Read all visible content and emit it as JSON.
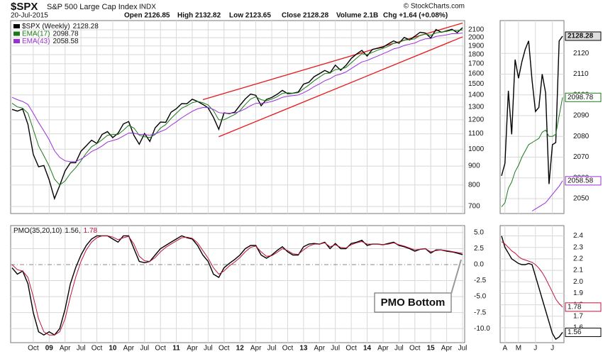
{
  "header": {
    "symbol": "$SPX",
    "name": "S&P 500 Large Cap Index",
    "exchange": "INDX",
    "copyright": "© StockCharts.com",
    "date": "20-Jul-2015",
    "quote": [
      "Open 2126.85",
      "High 2132.82",
      "Low 2123.65",
      "Close 2128.28",
      "Volume 2.1B",
      "Chg +1.64 (+0.08%)"
    ]
  },
  "chart_data": [
    {
      "type": "line",
      "x": [
        "2008-06",
        "2008-07",
        "2008-08",
        "2008-09",
        "2008-10",
        "2008-11",
        "2008-12",
        "2009-01",
        "2009-02",
        "2009-03",
        "2009-04",
        "2009-05",
        "2009-06",
        "2009-07",
        "2009-08",
        "2009-09",
        "2009-10",
        "2009-11",
        "2009-12",
        "2010-01",
        "2010-02",
        "2010-03",
        "2010-04",
        "2010-05",
        "2010-06",
        "2010-07",
        "2010-08",
        "2010-09",
        "2010-10",
        "2010-11",
        "2010-12",
        "2011-01",
        "2011-02",
        "2011-03",
        "2011-04",
        "2011-05",
        "2011-06",
        "2011-07",
        "2011-08",
        "2011-09",
        "2011-10",
        "2011-11",
        "2011-12",
        "2012-01",
        "2012-02",
        "2012-03",
        "2012-04",
        "2012-05",
        "2012-06",
        "2012-07",
        "2012-08",
        "2012-09",
        "2012-10",
        "2012-11",
        "2012-12",
        "2013-01",
        "2013-02",
        "2013-03",
        "2013-04",
        "2013-05",
        "2013-06",
        "2013-07",
        "2013-08",
        "2013-09",
        "2013-10",
        "2013-11",
        "2013-12",
        "2014-01",
        "2014-02",
        "2014-03",
        "2014-04",
        "2014-05",
        "2014-06",
        "2014-07",
        "2014-08",
        "2014-09",
        "2014-10",
        "2014-11",
        "2014-12",
        "2015-01",
        "2015-02",
        "2015-03",
        "2015-04",
        "2015-05",
        "2015-06",
        "2015-07"
      ],
      "xlim": [
        "2008-06",
        "2015-07"
      ],
      "xticks": [
        {
          "value": "2008-10",
          "label": "Oct"
        },
        {
          "value": "2009-01",
          "label": "09"
        },
        {
          "value": "2009-04",
          "label": "Apr"
        },
        {
          "value": "2009-07",
          "label": "Jul"
        },
        {
          "value": "2009-10",
          "label": "Oct"
        },
        {
          "value": "2010-01",
          "label": "10"
        },
        {
          "value": "2010-04",
          "label": "Apr"
        },
        {
          "value": "2010-07",
          "label": "Jul"
        },
        {
          "value": "2010-10",
          "label": "Oct"
        },
        {
          "value": "2011-01",
          "label": "11"
        },
        {
          "value": "2011-04",
          "label": "Apr"
        },
        {
          "value": "2011-07",
          "label": "Jul"
        },
        {
          "value": "2011-10",
          "label": "Oct"
        },
        {
          "value": "2012-01",
          "label": "12"
        },
        {
          "value": "2012-04",
          "label": "Apr"
        },
        {
          "value": "2012-07",
          "label": "Jul"
        },
        {
          "value": "2012-10",
          "label": "Oct"
        },
        {
          "value": "2013-01",
          "label": "13"
        },
        {
          "value": "2013-04",
          "label": "Apr"
        },
        {
          "value": "2013-07",
          "label": "Jul"
        },
        {
          "value": "2013-10",
          "label": "Oct"
        },
        {
          "value": "2014-01",
          "label": "14"
        },
        {
          "value": "2014-04",
          "label": "Apr"
        },
        {
          "value": "2014-07",
          "label": "Jul"
        },
        {
          "value": "2014-10",
          "label": "Oct"
        },
        {
          "value": "2015-01",
          "label": "15"
        },
        {
          "value": "2015-04",
          "label": "Apr"
        },
        {
          "value": "2015-07",
          "label": "Jul"
        }
      ],
      "ylim": [
        670,
        2224
      ],
      "log_y": true,
      "grid": true,
      "yticks": [
        700,
        800,
        900,
        1000,
        1100,
        1200,
        1300,
        1400,
        1500,
        1600,
        1700,
        1800,
        1900,
        2000,
        2100
      ],
      "pmo_ylim": [
        -12.2,
        6.1
      ],
      "pmo_yticks": [
        {
          "value": 5,
          "label": "5.0"
        },
        {
          "value": 2.5,
          "label": "2.5"
        },
        {
          "value": 0,
          "label": "0.0"
        },
        {
          "value": -2.5,
          "label": "-2.5"
        },
        {
          "value": -5,
          "label": "-5.0"
        },
        {
          "value": -7.5,
          "label": "-7.5"
        },
        {
          "value": -10,
          "label": "-10.0"
        }
      ],
      "legend_separator": ",",
      "annotation": "PMO Bottom",
      "trendlines": [
        {
          "color": "#e8191a",
          "x": [
            "2011-06",
            "2015-07"
          ],
          "y": [
            1360,
            2190
          ]
        },
        {
          "color": "#e8191a",
          "x": [
            "2011-09",
            "2015-07"
          ],
          "y": [
            1080,
            2010
          ]
        }
      ],
      "series": [
        {
          "name": "$SPX (Weekly)",
          "color": "#000000",
          "panel": "price",
          "values": [
            1280,
            1267,
            1283,
            1166,
            968,
            896,
            903,
            826,
            735,
            798,
            873,
            919,
            919,
            987,
            1021,
            1057,
            1036,
            1096,
            1115,
            1074,
            1104,
            1169,
            1187,
            1089,
            1031,
            1102,
            1049,
            1141,
            1183,
            1181,
            1258,
            1286,
            1327,
            1326,
            1364,
            1345,
            1321,
            1292,
            1219,
            1131,
            1253,
            1247,
            1258,
            1312,
            1366,
            1408,
            1398,
            1310,
            1362,
            1379,
            1406,
            1441,
            1412,
            1416,
            1426,
            1498,
            1515,
            1569,
            1598,
            1631,
            1606,
            1686,
            1633,
            1682,
            1757,
            1806,
            1848,
            1783,
            1859,
            1872,
            1884,
            1924,
            1960,
            1931,
            2003,
            1972,
            2018,
            2068,
            2059,
            1995,
            2105,
            2068,
            2086,
            2107,
            2063,
            2128.28
          ]
        },
        {
          "name": "EMA(17)",
          "color": "#1a7a1a",
          "panel": "price",
          "values": [
            1330,
            1300,
            1290,
            1250,
            1130,
            1020,
            960,
            900,
            830,
            800,
            820,
            860,
            890,
            930,
            975,
            1015,
            1035,
            1060,
            1090,
            1095,
            1095,
            1125,
            1160,
            1140,
            1090,
            1080,
            1075,
            1095,
            1140,
            1165,
            1210,
            1250,
            1290,
            1310,
            1335,
            1345,
            1335,
            1315,
            1270,
            1200,
            1200,
            1220,
            1240,
            1270,
            1320,
            1365,
            1385,
            1360,
            1350,
            1365,
            1385,
            1415,
            1420,
            1415,
            1420,
            1455,
            1490,
            1530,
            1565,
            1600,
            1605,
            1640,
            1645,
            1660,
            1710,
            1760,
            1810,
            1800,
            1825,
            1850,
            1870,
            1895,
            1930,
            1940,
            1970,
            1975,
            1985,
            2030,
            2045,
            2030,
            2060,
            2070,
            2080,
            2095,
            2090,
            2098.78
          ]
        },
        {
          "name": "EMA(43)",
          "color": "#9b30d9",
          "panel": "price",
          "values": [
            1380,
            1360,
            1345,
            1320,
            1250,
            1180,
            1120,
            1060,
            990,
            950,
            930,
            925,
            925,
            940,
            960,
            985,
            1000,
            1020,
            1045,
            1055,
            1065,
            1085,
            1105,
            1105,
            1095,
            1095,
            1090,
            1100,
            1115,
            1130,
            1160,
            1185,
            1215,
            1240,
            1265,
            1285,
            1295,
            1295,
            1280,
            1255,
            1250,
            1250,
            1252,
            1265,
            1285,
            1310,
            1330,
            1330,
            1335,
            1345,
            1360,
            1380,
            1390,
            1395,
            1400,
            1420,
            1445,
            1475,
            1500,
            1530,
            1550,
            1580,
            1595,
            1615,
            1650,
            1685,
            1720,
            1735,
            1760,
            1785,
            1810,
            1835,
            1865,
            1880,
            1905,
            1920,
            1935,
            1965,
            1985,
            1990,
            2015,
            2025,
            2035,
            2050,
            2050,
            2058.58
          ]
        },
        {
          "name": "PMO(35,20,10)",
          "color": "#000000",
          "panel": "pmo",
          "values": [
            -0.5,
            -1.5,
            -1,
            -3,
            -7.5,
            -10.5,
            -11,
            -10.5,
            -11,
            -10,
            -7,
            -3,
            -0.5,
            1.5,
            3,
            4,
            4.5,
            4.5,
            4.5,
            4,
            3.5,
            4.5,
            4.5,
            2.5,
            0.5,
            0.3,
            0.5,
            1.5,
            2.5,
            3,
            3.5,
            4,
            4.5,
            4.2,
            4,
            3,
            1.5,
            0.5,
            -1.5,
            -2,
            -0.5,
            0.2,
            0.8,
            1.5,
            2.5,
            3,
            3,
            1.5,
            1,
            1.5,
            2.2,
            2.8,
            2,
            1.5,
            1.5,
            2.8,
            3.2,
            3.3,
            3.2,
            3.5,
            2.5,
            3.3,
            2.5,
            2.5,
            3.3,
            3.5,
            3.8,
            3,
            3.2,
            3.2,
            3.1,
            3.3,
            3.5,
            3,
            2.8,
            2.5,
            2.1,
            2.4,
            2.5,
            1.8,
            2.3,
            2.3,
            2.1,
            2,
            1.8,
            1.56
          ]
        },
        {
          "color": "#c0143c",
          "panel": "pmo",
          "values": [
            0,
            -0.8,
            -1,
            -2,
            -5,
            -8.5,
            -10.5,
            -11,
            -11,
            -10.5,
            -8.5,
            -5,
            -2,
            0.5,
            2.3,
            3.5,
            4.2,
            4.5,
            4.5,
            4.3,
            3.9,
            4.2,
            4.4,
            3.2,
            1.3,
            0.6,
            0.5,
            1.1,
            2,
            2.7,
            3.2,
            3.7,
            4.2,
            4.3,
            4.1,
            3.4,
            2.2,
            1,
            -0.5,
            -1.5,
            -1,
            -0.2,
            0.4,
            1.1,
            2,
            2.7,
            2.9,
            2,
            1.3,
            1.4,
            1.9,
            2.5,
            2.2,
            1.7,
            1.6,
            2.3,
            2.9,
            3.2,
            3.2,
            3.4,
            2.8,
            3.1,
            2.7,
            2.6,
            3.1,
            3.4,
            3.6,
            3.2,
            3.2,
            3.2,
            3.1,
            3.2,
            3.4,
            3.1,
            2.9,
            2.6,
            2.3,
            2.4,
            2.5,
            2,
            2.2,
            2.3,
            2.2,
            2.05,
            1.9,
            1.78
          ]
        }
      ]
    },
    {
      "type": "line",
      "categories": [
        null,
        "A",
        null,
        null,
        null,
        "M",
        null,
        null,
        null,
        null,
        "J",
        null,
        null,
        null,
        null,
        "J",
        null,
        null,
        null
      ],
      "ylim": [
        2042.8,
        2135.8
      ],
      "grid": true,
      "yticks": [
        2050,
        2060,
        2070,
        2080,
        2090,
        2100,
        2110,
        2120
      ],
      "pmo_ylim": [
        1.47,
        2.49
      ],
      "pmo_yticks": [
        1.6,
        1.7,
        1.8,
        1.9,
        {
          "value": 2,
          "label": "2.0"
        },
        2.1,
        2.2,
        2.3,
        2.4
      ],
      "series": [
        {
          "color": "#000000",
          "panel": "price",
          "values": [
            2061,
            2067,
            2102,
            2081,
            2117,
            2108,
            2116,
            2122,
            2126,
            2107,
            2092,
            2094,
            2110,
            2101,
            2057,
            2076,
            2077,
            2126,
            2128.28
          ]
        },
        {
          "color": "#1a7a1a",
          "panel": "price",
          "values": [
            2046,
            2048,
            2055,
            2058,
            2063,
            2066,
            2070,
            2073,
            2076,
            2077,
            2078,
            2079,
            2082,
            2083,
            2080,
            2080,
            2081,
            2090,
            2098.78
          ]
        },
        {
          "color": "#9b30d9",
          "panel": "price",
          "values": [
            null,
            null,
            null,
            null,
            null,
            null,
            null,
            null,
            null,
            2044,
            2045,
            2046,
            2047,
            2048,
            2050,
            2052,
            2054,
            2056,
            2058.58
          ]
        },
        {
          "color": "#000000",
          "panel": "pmo",
          "values": [
            2.4,
            2.3,
            2.25,
            2.2,
            2.18,
            2.16,
            2.15,
            2.15,
            2.16,
            2.15,
            2.05,
            1.95,
            1.85,
            1.75,
            1.65,
            1.55,
            1.5,
            1.52,
            1.56
          ]
        },
        {
          "color": "#c0143c",
          "panel": "pmo",
          "values": [
            2.35,
            2.33,
            2.3,
            2.27,
            2.25,
            2.22,
            2.2,
            2.19,
            2.18,
            2.17,
            2.15,
            2.12,
            2.08,
            2.03,
            1.97,
            1.91,
            1.85,
            1.81,
            1.78
          ]
        }
      ]
    }
  ]
}
